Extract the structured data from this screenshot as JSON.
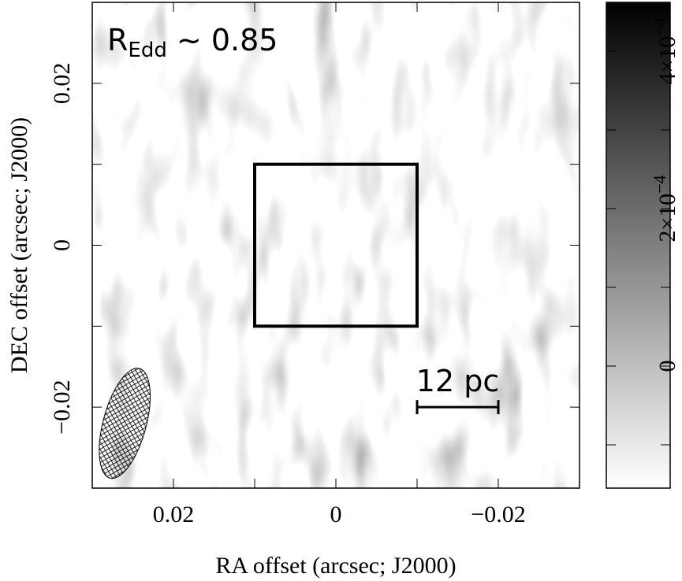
{
  "chart_data": {
    "type": "image",
    "xlabel": "RA offset (arcsec; J2000)",
    "ylabel": "DEC offset (arcsec; J2000)",
    "xlim": [
      0.03,
      -0.03
    ],
    "ylim": [
      -0.03,
      0.03
    ],
    "xticks": [
      0.02,
      0,
      {
        "value": -0.02,
        "label": "−0.02"
      }
    ],
    "yticks": [
      {
        "value": -0.02,
        "label": "−0.02"
      },
      0,
      0.02
    ],
    "minor_xticks": [
      0.01,
      -0.01
    ],
    "minor_yticks": [
      -0.01,
      0.01
    ],
    "annotation": {
      "text": "R",
      "sub": "Edd",
      "rest": " ~ 0.85"
    },
    "box": {
      "x": [
        0.01,
        -0.01
      ],
      "y": [
        -0.01,
        0.01
      ],
      "color": "#000000"
    },
    "scale_bar": {
      "label": "12 pc",
      "x": [
        -0.01,
        -0.02
      ],
      "y": -0.02
    },
    "beam": {
      "x": 0.026,
      "y": -0.022,
      "major": 0.014,
      "minor": 0.0053,
      "pa": 15
    },
    "colorbar": {
      "clim": [
        -0.000155,
        0.000462
      ],
      "colors": [
        "#ffffff",
        "#000000"
      ],
      "ticks": [
        0,
        {
          "value": 0.0002,
          "label": "2×10",
          "exp": "−4"
        },
        {
          "value": 0.0004,
          "label": "4×10",
          "exp": "−4"
        }
      ],
      "minor_ticks": [
        -0.0001,
        0.0001,
        0.0003
      ]
    }
  }
}
